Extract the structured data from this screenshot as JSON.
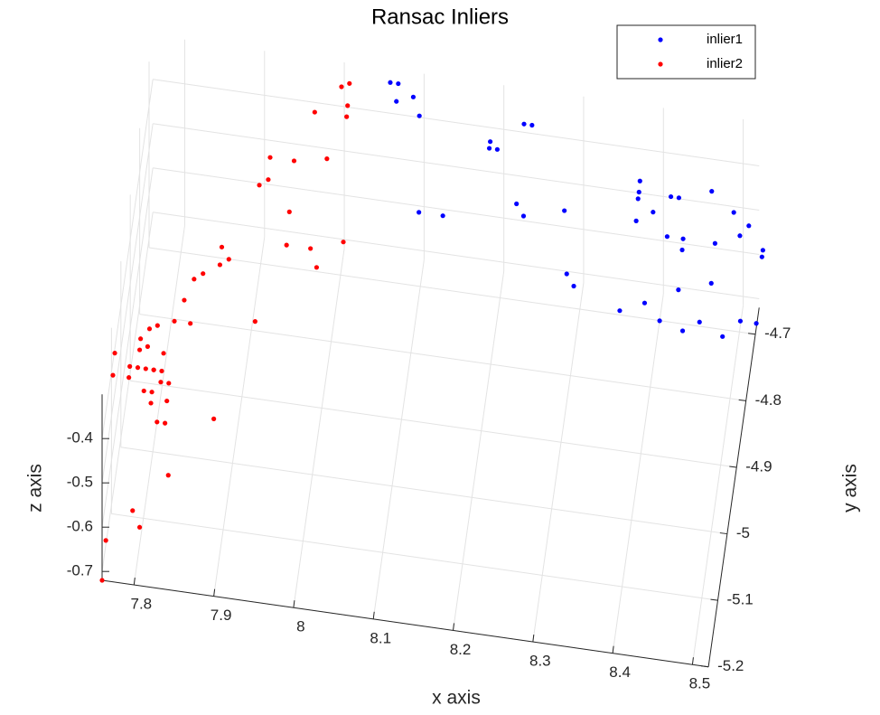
{
  "chart_data": {
    "type": "scatter3",
    "title": "Ransac Inliers",
    "xlabel": "x axis",
    "ylabel": "y axis",
    "zlabel": "z axis",
    "xlim": [
      7.76,
      8.52
    ],
    "ylim": [
      -5.2,
      -4.66
    ],
    "zlim": [
      -0.72,
      -0.3
    ],
    "xticks": [
      7.8,
      7.9,
      8,
      8.1,
      8.2,
      8.3,
      8.4,
      8.5
    ],
    "yticks": [
      -5.2,
      -5.1,
      -5,
      -4.9,
      -4.8,
      -4.7
    ],
    "zticks": [
      -0.7,
      -0.6,
      -0.5,
      -0.4
    ],
    "grid": true,
    "legend": "upper right",
    "series": [
      {
        "name": "inlier1",
        "color": "#0000ff",
        "x": [
          8.06,
          8.07,
          8.09,
          8.07,
          8.1,
          8.23,
          8.24,
          8.19,
          8.2,
          8.19,
          8.38,
          8.38,
          8.38,
          8.43,
          8.42,
          8.47,
          8.11,
          8.14,
          8.23,
          8.24,
          8.29,
          8.4,
          8.38,
          8.5,
          8.52,
          8.42,
          8.51,
          8.44,
          8.48,
          8.54,
          8.44,
          8.54,
          8.3,
          8.31,
          8.48,
          8.44,
          8.4,
          8.37,
          8.52,
          8.54,
          8.42,
          8.47,
          8.45,
          8.5
        ],
        "y": [
          -4.68,
          -4.68,
          -4.69,
          -4.7,
          -4.71,
          -4.7,
          -4.7,
          -4.72,
          -4.73,
          -4.73,
          -4.74,
          -4.75,
          -4.76,
          -4.75,
          -4.75,
          -4.74,
          -4.8,
          -4.8,
          -4.78,
          -4.79,
          -4.78,
          -4.77,
          -4.78,
          -4.76,
          -4.77,
          -4.79,
          -4.78,
          -4.79,
          -4.79,
          -4.79,
          -4.8,
          -4.8,
          -4.84,
          -4.85,
          -4.83,
          -4.84,
          -4.86,
          -4.87,
          -4.86,
          -4.86,
          -4.87,
          -4.87,
          -4.88,
          -4.88
        ],
        "z": [
          -0.3,
          -0.3,
          -0.31,
          -0.31,
          -0.32,
          -0.32,
          -0.32,
          -0.34,
          -0.34,
          -0.34,
          -0.35,
          -0.36,
          -0.36,
          -0.36,
          -0.36,
          -0.35,
          -0.4,
          -0.4,
          -0.38,
          -0.39,
          -0.38,
          -0.37,
          -0.38,
          -0.36,
          -0.37,
          -0.39,
          -0.38,
          -0.39,
          -0.39,
          -0.39,
          -0.4,
          -0.39,
          -0.43,
          -0.44,
          -0.42,
          -0.43,
          -0.44,
          -0.45,
          -0.45,
          -0.45,
          -0.46,
          -0.45,
          -0.46,
          -0.46
        ]
      },
      {
        "name": "inlier2",
        "color": "#ff0000",
        "x": [
          8.01,
          8.0,
          8.01,
          8.01,
          7.97,
          7.92,
          7.95,
          7.99,
          7.91,
          7.92,
          7.95,
          7.87,
          7.95,
          7.98,
          8.02,
          7.87,
          7.88,
          7.99,
          7.85,
          7.84,
          7.83,
          7.84,
          7.92,
          7.8,
          7.82,
          7.79,
          7.78,
          7.79,
          7.78,
          7.81,
          7.75,
          7.77,
          7.79,
          7.8,
          7.81,
          7.75,
          7.78,
          7.77,
          7.8,
          7.81,
          7.82,
          7.79,
          7.8,
          7.82,
          7.8,
          7.81,
          7.82,
          7.88,
          7.83,
          7.79,
          7.8,
          7.76,
          7.76
        ],
        "y": [
          -4.69,
          -4.69,
          -4.71,
          -4.72,
          -4.72,
          -4.77,
          -4.77,
          -4.76,
          -4.8,
          -4.79,
          -4.82,
          -4.86,
          -4.85,
          -4.85,
          -4.84,
          -4.88,
          -4.87,
          -4.87,
          -4.89,
          -4.9,
          -4.92,
          -4.94,
          -4.93,
          -4.95,
          -4.94,
          -4.95,
          -4.96,
          -4.97,
          -4.97,
          -4.97,
          -4.98,
          -4.99,
          -4.99,
          -4.99,
          -4.99,
          -5,
          -4.99,
          -5,
          -4.99,
          -5,
          -5,
          -5.01,
          -5.01,
          -5.02,
          -5.02,
          -5.04,
          -5.04,
          -5.03,
          -5.09,
          -5.13,
          -5.14,
          -5.16,
          -5.2
        ],
        "z": [
          -0.3,
          -0.31,
          -0.32,
          -0.33,
          -0.33,
          -0.37,
          -0.37,
          -0.37,
          -0.39,
          -0.39,
          -0.41,
          -0.45,
          -0.44,
          -0.44,
          -0.43,
          -0.46,
          -0.46,
          -0.45,
          -0.47,
          -0.47,
          -0.49,
          -0.51,
          -0.5,
          -0.51,
          -0.51,
          -0.52,
          -0.53,
          -0.53,
          -0.54,
          -0.54,
          -0.54,
          -0.55,
          -0.55,
          -0.55,
          -0.55,
          -0.56,
          -0.55,
          -0.56,
          -0.55,
          -0.56,
          -0.56,
          -0.57,
          -0.57,
          -0.57,
          -0.58,
          -0.59,
          -0.59,
          -0.58,
          -0.63,
          -0.66,
          -0.68,
          -0.69,
          -0.72
        ]
      }
    ]
  }
}
